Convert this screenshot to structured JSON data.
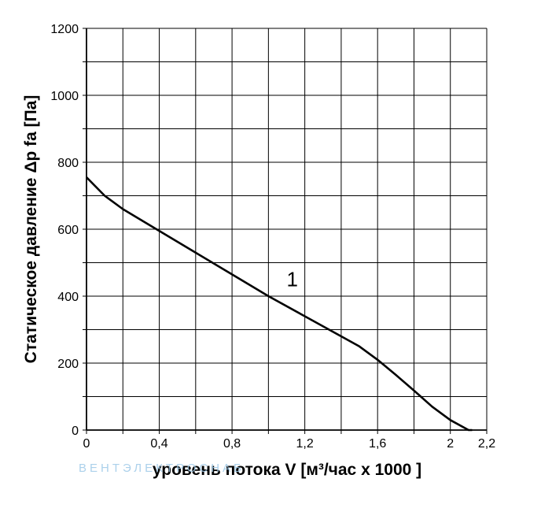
{
  "chart_data": {
    "type": "line",
    "title": "",
    "xlabel": "уровень потока  V [м³/час x 1000 ]",
    "ylabel": "Статическое давление  Δp fa [Па]",
    "xlim": [
      0,
      2.2
    ],
    "ylim": [
      0,
      1200
    ],
    "x_ticks": [
      0,
      0.4,
      0.8,
      1.2,
      1.6,
      2,
      2.2
    ],
    "x_tick_labels": [
      "0",
      "0,4",
      "0,8",
      "1,2",
      "1,6",
      "2",
      "2,2"
    ],
    "y_ticks": [
      0,
      200,
      400,
      600,
      800,
      1000,
      1200
    ],
    "y_tick_labels": [
      "0",
      "200",
      "400",
      "600",
      "800",
      "1000",
      "1200"
    ],
    "grid": true,
    "series": [
      {
        "name": "1",
        "x": [
          0,
          0.1,
          0.2,
          0.4,
          0.6,
          0.8,
          1.0,
          1.2,
          1.4,
          1.5,
          1.6,
          1.7,
          1.8,
          1.9,
          2.0,
          2.1,
          2.12
        ],
        "y": [
          755,
          700,
          660,
          595,
          530,
          465,
          400,
          340,
          280,
          250,
          210,
          165,
          118,
          70,
          30,
          0,
          0
        ]
      }
    ],
    "annotation": {
      "text": "1",
      "x": 1.1,
      "y": 430
    }
  },
  "watermark": "ВЕНТЭЛЕКТРОСНАБ"
}
